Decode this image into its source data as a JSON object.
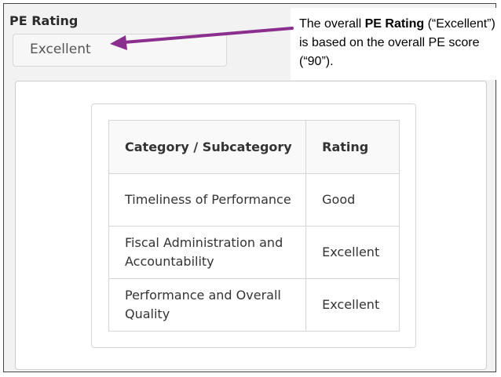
{
  "field": {
    "label": "PE Rating",
    "value": "Excellent"
  },
  "table": {
    "headers": [
      "Category / Subcategory",
      "Rating"
    ],
    "rows": [
      {
        "category": "Timeliness of Performance",
        "rating": "Good"
      },
      {
        "category": "Fiscal Administration and Accountability",
        "rating": "Excellent"
      },
      {
        "category": "Performance and Overall Quality",
        "rating": "Excellent"
      }
    ]
  },
  "callout": {
    "prefix": "The overall ",
    "bold": "PE Rating",
    "suffix": " (“Excellent”) is based on the overall PE score (“90”)."
  },
  "colors": {
    "arrow": "#8b2f8f"
  }
}
